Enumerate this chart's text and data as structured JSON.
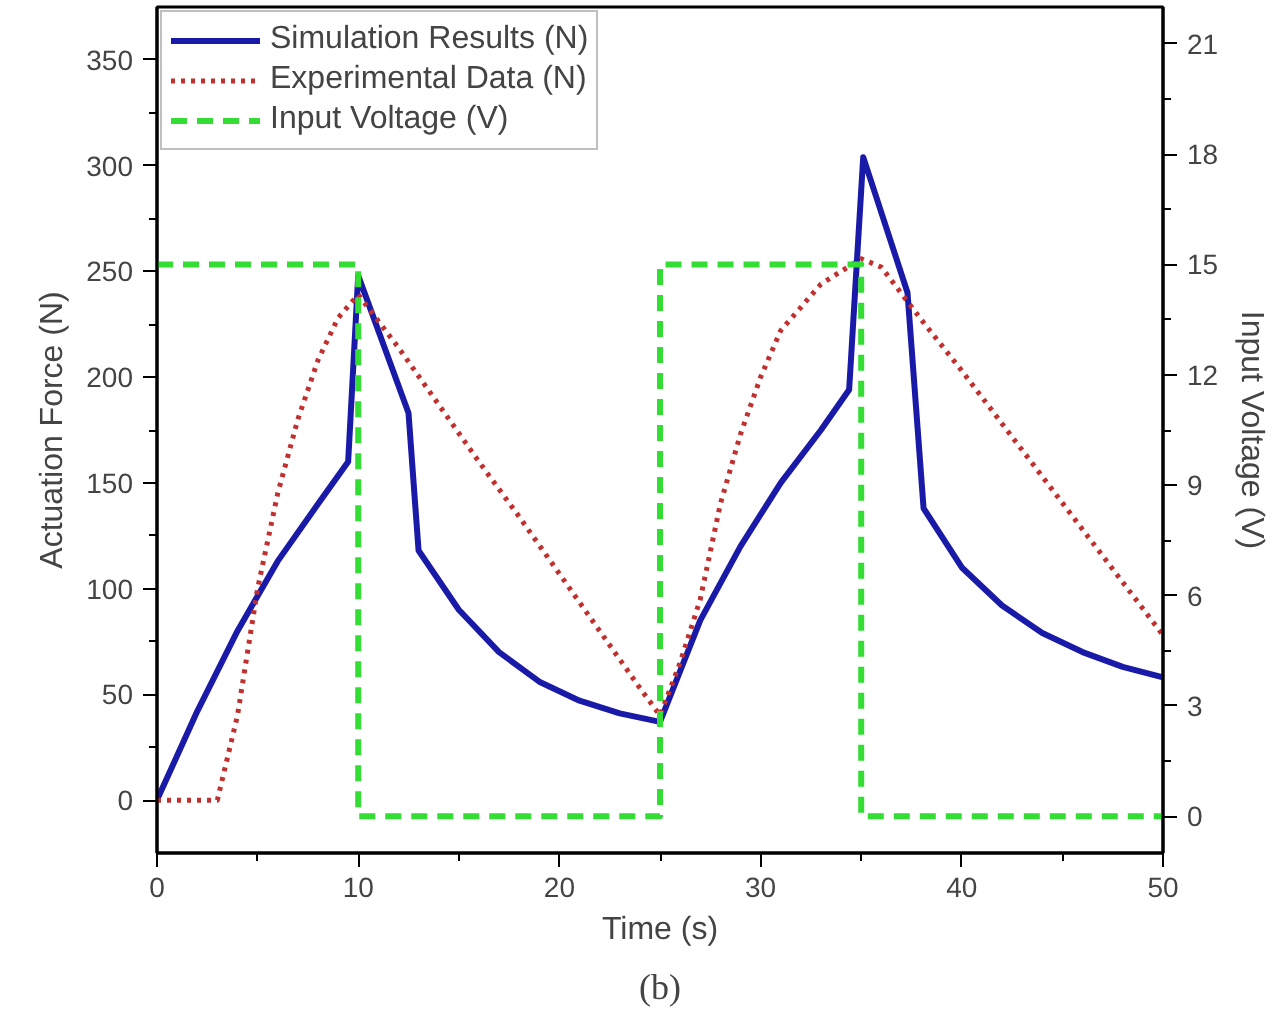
{
  "chart_data": {
    "type": "line",
    "xlabel": "Time (s)",
    "ylabel": "Actuation Force (N)",
    "y2label": "Input Voltage (V)",
    "annotations": [
      "(b)"
    ],
    "xlim": [
      0,
      50
    ],
    "xticks": [
      0,
      10,
      20,
      30,
      40,
      50
    ],
    "ylim": [
      -25,
      375
    ],
    "yticks": [
      0,
      50,
      100,
      150,
      200,
      250,
      300,
      350
    ],
    "y2lim": [
      -1,
      22
    ],
    "y2ticks": [
      0,
      3,
      6,
      9,
      12,
      15,
      18,
      21
    ],
    "grid": false,
    "legend": "top left",
    "series": [
      {
        "name": "Simulation Results (N)",
        "color": "#1a1aa8",
        "line_style": "solid",
        "x": [
          0,
          2,
          4,
          6,
          8,
          9.5,
          10,
          12.5,
          13,
          15,
          17,
          19,
          21,
          23,
          25,
          27,
          29,
          31,
          33,
          34.4,
          35.1,
          37.3,
          38.1,
          40,
          42,
          44,
          46,
          48,
          50
        ],
        "values": [
          0,
          42,
          80,
          113,
          140,
          160,
          248,
          183,
          118,
          90,
          70,
          56,
          47,
          41,
          37,
          85,
          120,
          150,
          175,
          194,
          304,
          240,
          138,
          110,
          92,
          79,
          70,
          63,
          58
        ]
      },
      {
        "name": "Experimental Data (N)",
        "color": "#c0302f",
        "line_style": "dotted",
        "x": [
          0,
          3,
          4,
          5,
          6,
          7,
          8,
          9,
          10,
          12,
          14,
          16,
          18,
          20,
          22,
          24,
          25,
          26,
          27,
          28,
          29,
          30,
          31,
          33,
          35,
          36,
          38,
          40,
          42,
          44,
          46,
          48,
          50
        ],
        "values": [
          0,
          0,
          40,
          100,
          145,
          180,
          208,
          228,
          239,
          214,
          187,
          160,
          134,
          107,
          80,
          53,
          40,
          65,
          95,
          140,
          173,
          200,
          222,
          244,
          256,
          252,
          227,
          203,
          178,
          153,
          128,
          103,
          78
        ]
      },
      {
        "name": "Input Voltage (V)",
        "color": "#33dd33",
        "line_style": "dashed",
        "axis": "y2",
        "x": [
          0,
          10,
          10,
          25,
          25,
          35,
          35,
          50
        ],
        "values": [
          15,
          15,
          0,
          0,
          15,
          15,
          0,
          0
        ]
      }
    ]
  }
}
